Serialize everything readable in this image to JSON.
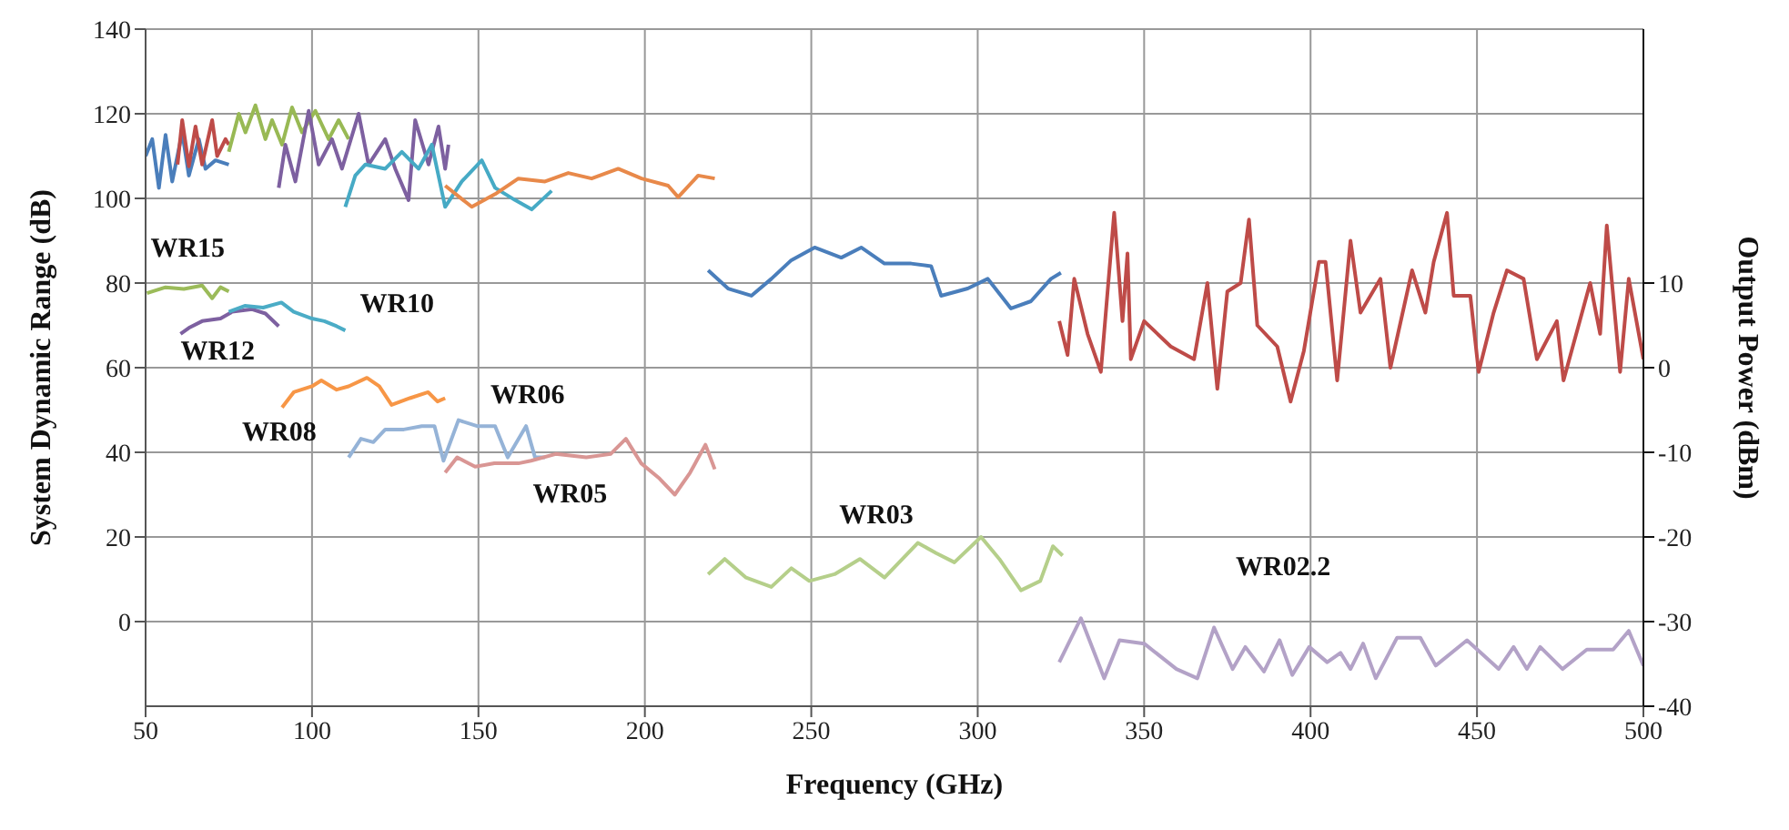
{
  "chart_data": {
    "type": "line",
    "xlabel": "Frequency (GHz)",
    "ylabel": "System Dynamic Range (dB)",
    "y2label": "Output Power (dBm)",
    "xlim": [
      50,
      500
    ],
    "xticks": [
      50,
      100,
      150,
      200,
      250,
      300,
      350,
      400,
      450,
      500
    ],
    "ylim": [
      -20,
      140
    ],
    "yticks": [
      0,
      20,
      40,
      60,
      80,
      100,
      120,
      140
    ],
    "y2lim": [
      -40,
      40
    ],
    "y2ticks": [
      -40,
      -30,
      -20,
      -10,
      0,
      10
    ],
    "grid": true,
    "legend": false,
    "marker": "none",
    "series": [
      {
        "color": "#4a7ebb",
        "x": [
          50,
          52,
          54,
          56,
          58,
          61,
          63,
          66,
          68,
          71,
          75
        ],
        "values": [
          110,
          114,
          102.5,
          115,
          104,
          115.6,
          105.4,
          114,
          107,
          109,
          108
        ]
      },
      {
        "color": "#be4b48",
        "x": [
          59.6,
          61,
          63,
          65,
          67,
          70,
          71.5,
          74,
          75
        ],
        "values": [
          108,
          118.5,
          107.6,
          117,
          108,
          118.5,
          110,
          114,
          112.7
        ]
      },
      {
        "color": "#98b954",
        "x": [
          75,
          78,
          80,
          83,
          86,
          88,
          91,
          94,
          97,
          101,
          105,
          108,
          111
        ],
        "values": [
          111,
          120,
          115.6,
          122,
          114,
          118.5,
          112.7,
          121.5,
          115.6,
          120.7,
          114,
          118.5,
          114
        ]
      },
      {
        "color": "#7d60a0",
        "x": [
          90,
          92,
          95,
          99,
          102,
          106,
          109,
          114,
          117,
          122,
          125,
          129,
          131,
          135,
          138,
          140,
          141
        ],
        "values": [
          102.5,
          112.7,
          104,
          120.7,
          108,
          114,
          107,
          120,
          108,
          114,
          107,
          99.6,
          118.5,
          108,
          117,
          107,
          112.7
        ]
      },
      {
        "color": "#46aac5",
        "x": [
          110,
          113,
          116,
          122,
          127,
          132,
          136,
          140,
          145,
          151,
          155,
          161,
          166,
          172
        ],
        "values": [
          98,
          105.4,
          108,
          107,
          111,
          107,
          112.7,
          98,
          104,
          109,
          102.5,
          99.6,
          97.4,
          101.8
        ]
      },
      {
        "color": "#e8894a",
        "x": [
          140,
          148,
          155,
          162,
          170,
          177,
          184,
          192,
          199,
          207,
          210,
          216,
          221
        ],
        "values": [
          103,
          98,
          101,
          104.7,
          104,
          106,
          104.7,
          107,
          104.7,
          103,
          100.3,
          105.4,
          104.7
        ]
      },
      {
        "color": "#4a7ebb",
        "x": [
          219,
          225,
          232,
          238,
          244,
          251,
          259,
          265,
          272,
          280,
          286,
          289,
          297,
          303,
          310,
          316,
          322,
          325
        ],
        "values": [
          83,
          78.7,
          77,
          81,
          85.4,
          88.4,
          86,
          88.4,
          84.6,
          84.6,
          84,
          77,
          78.7,
          81,
          74,
          75.7,
          81,
          82.4
        ]
      },
      {
        "color": "#be4b48",
        "x": [
          324.5,
          327,
          329,
          333,
          337,
          341,
          343.5,
          345,
          346,
          350,
          358,
          365,
          369,
          372,
          375,
          379,
          381.5,
          384,
          390,
          394,
          398,
          402.5,
          404.5,
          408,
          412,
          415,
          421,
          424,
          430.5,
          434.5,
          437,
          441,
          443,
          448,
          450.5,
          455,
          459,
          464,
          468,
          474,
          476,
          484,
          487,
          489,
          493,
          495.6,
          500
        ],
        "values": [
          71,
          63,
          81,
          68,
          59,
          96.6,
          71,
          87,
          62,
          71,
          65,
          62,
          80,
          55,
          78,
          80,
          95,
          70,
          65,
          52,
          64,
          85,
          85,
          57,
          90,
          73,
          81,
          60,
          83,
          73,
          85,
          96.6,
          77,
          77,
          59,
          73,
          83,
          81,
          62,
          71,
          57,
          80,
          68,
          93.6,
          59,
          81,
          62
        ]
      },
      {
        "name": "WR15",
        "axis": "y2",
        "color": "#9bbb59",
        "x": [
          50.4,
          56,
          61.5,
          67,
          70,
          72.5,
          75
        ],
        "values": [
          8.8,
          9.5,
          9.3,
          9.7,
          8.2,
          9.5,
          9
        ]
      },
      {
        "name": "WR12",
        "axis": "y2",
        "color": "#7d60a0",
        "x": [
          60.5,
          63,
          67,
          72.5,
          76,
          82,
          86,
          90
        ],
        "values": [
          4,
          4.7,
          5.5,
          5.8,
          6.6,
          6.9,
          6.4,
          4.9
        ]
      },
      {
        "name": "WR10",
        "axis": "y2",
        "color": "#4bacc6",
        "x": [
          75,
          79.8,
          85.3,
          90.8,
          94.5,
          100,
          103.7,
          107.4,
          110
        ],
        "values": [
          6.6,
          7.3,
          7.1,
          7.7,
          6.6,
          5.8,
          5.5,
          4.9,
          4.4
        ]
      },
      {
        "name": "WR08",
        "axis": "y2",
        "color": "#f79646",
        "x": [
          91,
          94.5,
          100,
          102.8,
          107.4,
          111,
          116.5,
          120.2,
          123.9,
          129.4,
          134.9,
          137.7,
          140
        ],
        "values": [
          -4.7,
          -2.9,
          -2.2,
          -1.5,
          -2.6,
          -2.2,
          -1.2,
          -2.2,
          -4.4,
          -3.6,
          -2.9,
          -4,
          -3.6
        ]
      },
      {
        "name": "WR06",
        "axis": "y2",
        "color": "#95b3d7",
        "x": [
          111,
          114.7,
          118.4,
          122,
          127.6,
          133,
          136.8,
          139.5,
          144,
          149.6,
          155,
          158.8,
          164.3,
          167,
          170
        ],
        "values": [
          -10.6,
          -8.4,
          -8.8,
          -7.3,
          -7.3,
          -6.9,
          -6.9,
          -11,
          -6.2,
          -6.9,
          -6.9,
          -10.6,
          -6.9,
          -10.6,
          -10.6
        ]
      },
      {
        "name": "WR05",
        "axis": "y2",
        "color": "#d99694",
        "x": [
          140,
          143.6,
          149,
          154.8,
          162,
          165.8,
          173.2,
          182.4,
          189.7,
          194.3,
          198.9,
          204.4,
          209,
          213.6,
          218.2,
          221
        ],
        "values": [
          -12.4,
          -10.6,
          -11.7,
          -11.3,
          -11.3,
          -11,
          -10.2,
          -10.6,
          -10.2,
          -8.4,
          -11.3,
          -13.1,
          -15,
          -12.4,
          -9.1,
          -12
        ]
      },
      {
        "name": "WR03",
        "axis": "y2",
        "color": "#b5cf8a",
        "x": [
          219,
          224,
          230.4,
          238,
          244,
          249.4,
          257,
          264.6,
          272,
          282,
          287.5,
          293,
          301,
          306.5,
          313,
          318.8,
          322.6,
          325.5
        ],
        "values": [
          -24.4,
          -22.6,
          -24.8,
          -25.9,
          -23.7,
          -25.2,
          -24.4,
          -22.6,
          -24.8,
          -20.7,
          -21.9,
          -23,
          -20,
          -22.6,
          -26.3,
          -25.2,
          -21.1,
          -22.2
        ]
      },
      {
        "name": "WR02.2",
        "axis": "y2",
        "color": "#b3a2c7",
        "x": [
          324.5,
          331,
          338,
          342.6,
          350,
          359.7,
          366,
          371,
          376.6,
          380.4,
          386,
          390.7,
          394.5,
          399.6,
          405,
          409,
          412,
          415.8,
          419.6,
          426,
          433,
          437.6,
          447,
          456.5,
          461,
          465,
          469,
          475.7,
          483,
          490.9,
          495.6,
          500
        ],
        "values": [
          -34.8,
          -29.6,
          -36.7,
          -32.2,
          -32.6,
          -35.6,
          -36.7,
          -30.7,
          -35.6,
          -33,
          -35.9,
          -32.2,
          -36.3,
          -33,
          -34.8,
          -33.7,
          -35.6,
          -32.6,
          -36.7,
          -31.9,
          -31.9,
          -35.2,
          -32.2,
          -35.6,
          -33,
          -35.6,
          -33,
          -35.6,
          -33.3,
          -33.3,
          -31.1,
          -35.2
        ]
      }
    ]
  }
}
